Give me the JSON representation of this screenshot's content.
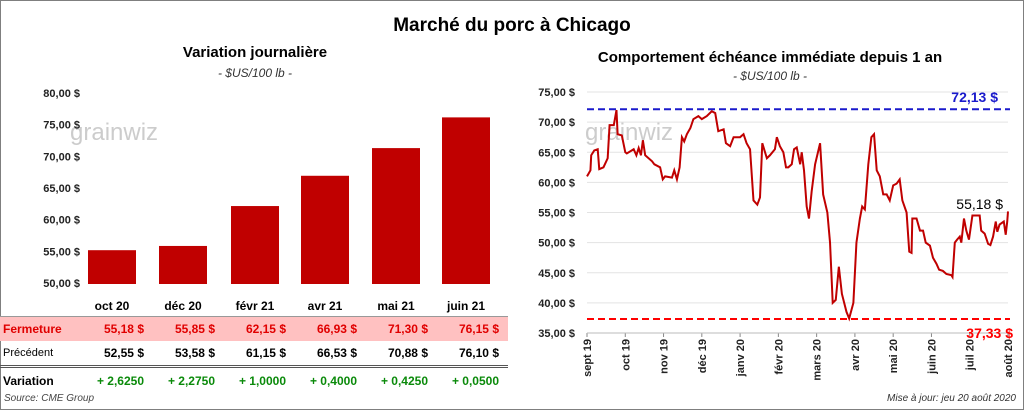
{
  "title": "Marché du porc à Chicago",
  "left_panel": {
    "title": "Variation journalière",
    "subtitle": "- $US/100 lb -"
  },
  "right_panel": {
    "title": "Comportement  échéance immédiate depuis 1 an",
    "subtitle": "- $US/100 lb -"
  },
  "watermark": "grainwiz",
  "chart_data": [
    {
      "type": "bar",
      "title": "Variation journalière",
      "categories": [
        "oct 20",
        "déc 20",
        "févr 21",
        "avr 21",
        "mai 21",
        "juin 21"
      ],
      "values": [
        55.18,
        55.85,
        62.15,
        66.93,
        71.3,
        76.15
      ],
      "ylim": [
        50,
        80
      ],
      "yticks": [
        "50,00 $",
        "55,00 $",
        "60,00 $",
        "65,00 $",
        "70,00 $",
        "75,00 $",
        "80,00 $"
      ],
      "color": "#c00000"
    },
    {
      "type": "line",
      "title": "Comportement  échéance immédiate depuis 1 an",
      "x_unit": "months since sept 19",
      "xticks": [
        "sept 19",
        "oct 19",
        "nov 19",
        "déc 19",
        "janv 20",
        "févr 20",
        "mars 20",
        "avr 20",
        "mai 20",
        "juin 20",
        "juil 20",
        "août 20"
      ],
      "ylim": [
        35,
        75
      ],
      "yticks": [
        "35,00 $",
        "40,00 $",
        "45,00 $",
        "50,00 $",
        "55,00 $",
        "60,00 $",
        "65,00 $",
        "70,00 $",
        "75,00 $"
      ],
      "color": "#c00000",
      "max": {
        "value": 72.13,
        "label": "72,13 $",
        "color": "#1a1acc"
      },
      "min": {
        "value": 37.33,
        "label": "37,33 $",
        "color": "#ff0000"
      },
      "last": {
        "value": 55.18,
        "label": "55,18 $"
      },
      "points": [
        [
          0,
          61
        ],
        [
          0.09,
          62
        ],
        [
          0.11,
          64.5
        ],
        [
          0.19,
          65.3
        ],
        [
          0.28,
          65.5
        ],
        [
          0.32,
          62.2
        ],
        [
          0.43,
          62.5
        ],
        [
          0.54,
          64
        ],
        [
          0.59,
          69.5
        ],
        [
          0.7,
          69.5
        ],
        [
          0.77,
          72
        ],
        [
          0.8,
          68
        ],
        [
          0.91,
          67.8
        ],
        [
          1.0,
          65
        ],
        [
          1.04,
          64.8
        ],
        [
          1.22,
          65.5
        ],
        [
          1.29,
          64.5
        ],
        [
          1.35,
          65.7
        ],
        [
          1.41,
          64.5
        ],
        [
          1.46,
          67
        ],
        [
          1.52,
          64.5
        ],
        [
          1.7,
          63.5
        ],
        [
          1.76,
          63
        ],
        [
          1.91,
          62.5
        ],
        [
          1.98,
          60.5
        ],
        [
          2.04,
          61
        ],
        [
          2.22,
          60.8
        ],
        [
          2.28,
          62
        ],
        [
          2.35,
          60.5
        ],
        [
          2.42,
          62.5
        ],
        [
          2.48,
          67.5
        ],
        [
          2.54,
          66.8
        ],
        [
          2.61,
          68
        ],
        [
          2.7,
          69
        ],
        [
          2.78,
          70.5
        ],
        [
          2.91,
          71
        ],
        [
          3.0,
          70.5
        ],
        [
          3.13,
          71
        ],
        [
          3.26,
          71.8
        ],
        [
          3.35,
          71.5
        ],
        [
          3.43,
          68.5
        ],
        [
          3.57,
          68.8
        ],
        [
          3.63,
          66.5
        ],
        [
          3.74,
          66
        ],
        [
          3.83,
          67.5
        ],
        [
          4.0,
          67.5
        ],
        [
          4.09,
          68
        ],
        [
          4.17,
          66.5
        ],
        [
          4.26,
          65.5
        ],
        [
          4.35,
          57
        ],
        [
          4.45,
          56.3
        ],
        [
          4.52,
          57.5
        ],
        [
          4.58,
          66.5
        ],
        [
          4.7,
          64
        ],
        [
          4.78,
          64.5
        ],
        [
          4.91,
          65.5
        ],
        [
          4.96,
          67.5
        ],
        [
          5.04,
          66
        ],
        [
          5.13,
          65
        ],
        [
          5.2,
          62.5
        ],
        [
          5.26,
          62.5
        ],
        [
          5.35,
          63
        ],
        [
          5.41,
          65.5
        ],
        [
          5.48,
          65.8
        ],
        [
          5.57,
          63
        ],
        [
          5.61,
          65
        ],
        [
          5.67,
          62
        ],
        [
          5.74,
          56
        ],
        [
          5.8,
          54
        ],
        [
          5.87,
          58.5
        ],
        [
          5.96,
          63
        ],
        [
          6.09,
          66.5
        ],
        [
          6.17,
          58
        ],
        [
          6.28,
          55
        ],
        [
          6.35,
          50
        ],
        [
          6.42,
          40
        ],
        [
          6.5,
          40.5
        ],
        [
          6.58,
          46
        ],
        [
          6.66,
          41.5
        ],
        [
          6.78,
          38.5
        ],
        [
          6.85,
          37.4
        ],
        [
          6.96,
          40
        ],
        [
          7.04,
          50
        ],
        [
          7.13,
          54
        ],
        [
          7.19,
          56
        ],
        [
          7.26,
          55.5
        ],
        [
          7.35,
          63
        ],
        [
          7.43,
          67.5
        ],
        [
          7.5,
          68
        ],
        [
          7.57,
          62
        ],
        [
          7.65,
          61
        ],
        [
          7.74,
          58
        ],
        [
          7.83,
          58
        ],
        [
          7.91,
          57
        ],
        [
          8.0,
          59.5
        ],
        [
          8.09,
          59.8
        ],
        [
          8.17,
          60.5
        ],
        [
          8.24,
          57
        ],
        [
          8.35,
          55
        ],
        [
          8.42,
          48.5
        ],
        [
          8.48,
          48.3
        ],
        [
          8.5,
          54
        ],
        [
          8.61,
          54
        ],
        [
          8.7,
          52
        ],
        [
          8.78,
          52
        ],
        [
          8.85,
          50
        ],
        [
          8.96,
          49.5
        ],
        [
          9.04,
          47.5
        ],
        [
          9.13,
          46.5
        ],
        [
          9.2,
          45.5
        ],
        [
          9.3,
          45.3
        ],
        [
          9.39,
          44.8
        ],
        [
          9.52,
          44.6
        ],
        [
          9.55,
          44.3
        ],
        [
          9.61,
          50
        ],
        [
          9.67,
          50.5
        ],
        [
          9.74,
          51
        ],
        [
          9.78,
          50
        ],
        [
          9.85,
          54
        ],
        [
          9.91,
          52
        ],
        [
          9.98,
          50.5
        ],
        [
          10.07,
          54.5
        ],
        [
          10.17,
          54.5
        ],
        [
          10.26,
          54.5
        ],
        [
          10.3,
          52
        ],
        [
          10.39,
          51.5
        ],
        [
          10.48,
          49.8
        ],
        [
          10.54,
          49.6
        ],
        [
          10.61,
          51
        ],
        [
          10.68,
          53.5
        ],
        [
          10.72,
          51.8
        ],
        [
          10.78,
          53
        ],
        [
          10.89,
          53.5
        ],
        [
          10.94,
          51.3
        ],
        [
          10.98,
          53.5
        ],
        [
          11.0,
          55.18
        ]
      ]
    }
  ],
  "table": {
    "headers": [
      "oct 20",
      "déc 20",
      "févr 21",
      "avr 21",
      "mai 21",
      "juin 21"
    ],
    "rows": [
      {
        "label": "Fermeture",
        "values": [
          "55,18  $",
          "55,85  $",
          "62,15  $",
          "66,93  $",
          "71,30  $",
          "76,15  $"
        ]
      },
      {
        "label": "Précédent",
        "values": [
          "52,55  $",
          "53,58  $",
          "61,15  $",
          "66,53  $",
          "70,88  $",
          "76,10  $"
        ]
      },
      {
        "label": "Variation",
        "values": [
          "+ 2,6250",
          "+ 2,2750",
          "+ 1,0000",
          "+ 0,4000",
          "+ 0,4250",
          "+ 0,0500"
        ]
      }
    ]
  },
  "source": "Source: CME Group",
  "updated": "Mise à jour: jeu 20 août 2020"
}
